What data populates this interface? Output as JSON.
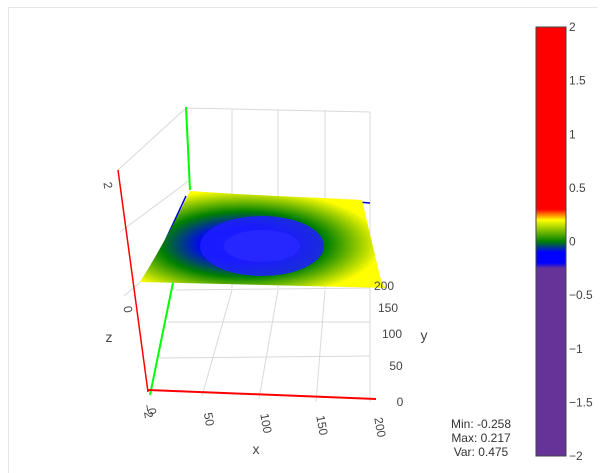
{
  "chart_data": {
    "type": "surface",
    "x": {
      "label": "x",
      "range": [
        0,
        200
      ],
      "ticks": [
        "0",
        "50",
        "100",
        "150",
        "200"
      ]
    },
    "y": {
      "label": "y",
      "range": [
        0,
        200
      ],
      "ticks": [
        "0",
        "50",
        "100",
        "150",
        "200"
      ]
    },
    "z": {
      "label": "z",
      "range": [
        -2,
        2
      ],
      "ticks": [
        "−2",
        "0",
        "2"
      ]
    },
    "surface": {
      "description_of_shape": "shallow bowl, minimum near center",
      "min": -0.258,
      "max": 0.217
    },
    "colorbar": {
      "range": [
        -2,
        2
      ],
      "ticks": [
        "2",
        "1.5",
        "1",
        "0.5",
        "0",
        "−0.5",
        "−1",
        "−1.5",
        "−2"
      ],
      "stops": [
        {
          "value": -2,
          "color": "#663399"
        },
        {
          "value": -0.25,
          "color": "#663399"
        },
        {
          "value": -0.2,
          "color": "#0000ff"
        },
        {
          "value": -0.1,
          "color": "#0000ff"
        },
        {
          "value": 0,
          "color": "#008000"
        },
        {
          "value": 0.2,
          "color": "#ffff00"
        },
        {
          "value": 0.3,
          "color": "#ff0000"
        },
        {
          "value": 2,
          "color": "#ff0000"
        }
      ]
    },
    "axis_colors": {
      "x": "#ff0000",
      "y": "#00ff00",
      "z": "#ff0000",
      "edge": "#0000cc"
    }
  },
  "stats": {
    "min": "Min: -0.258",
    "max": "Max: 0.217",
    "var": "Var: 0.475"
  }
}
